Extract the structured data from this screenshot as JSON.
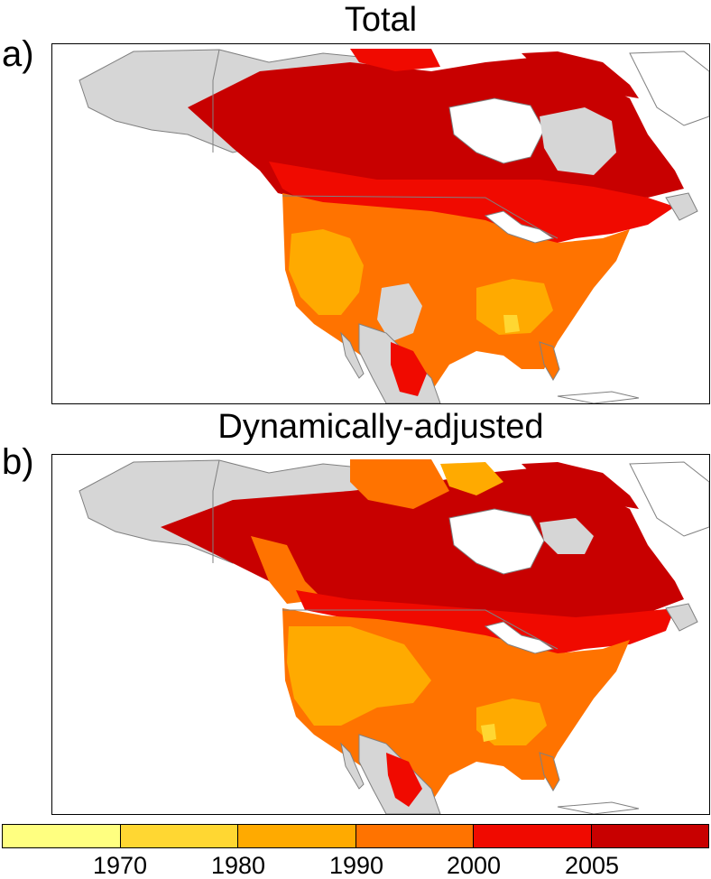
{
  "panels": [
    {
      "label": "a)",
      "title": "Total"
    },
    {
      "label": "b)",
      "title": "Dynamically-adjusted"
    }
  ],
  "colorbar": {
    "bins": [
      {
        "color": "#ffff80"
      },
      {
        "color": "#ffd732"
      },
      {
        "color": "#ffaa00"
      },
      {
        "color": "#ff7300"
      },
      {
        "color": "#f00a00"
      },
      {
        "color": "#c80000"
      }
    ],
    "ticks": [
      "1970",
      "1980",
      "1990",
      "2000",
      "2005"
    ]
  },
  "colors": {
    "land_missing": "#d6d6d6",
    "coast": "#808080",
    "ocean": "#ffffff"
  }
}
